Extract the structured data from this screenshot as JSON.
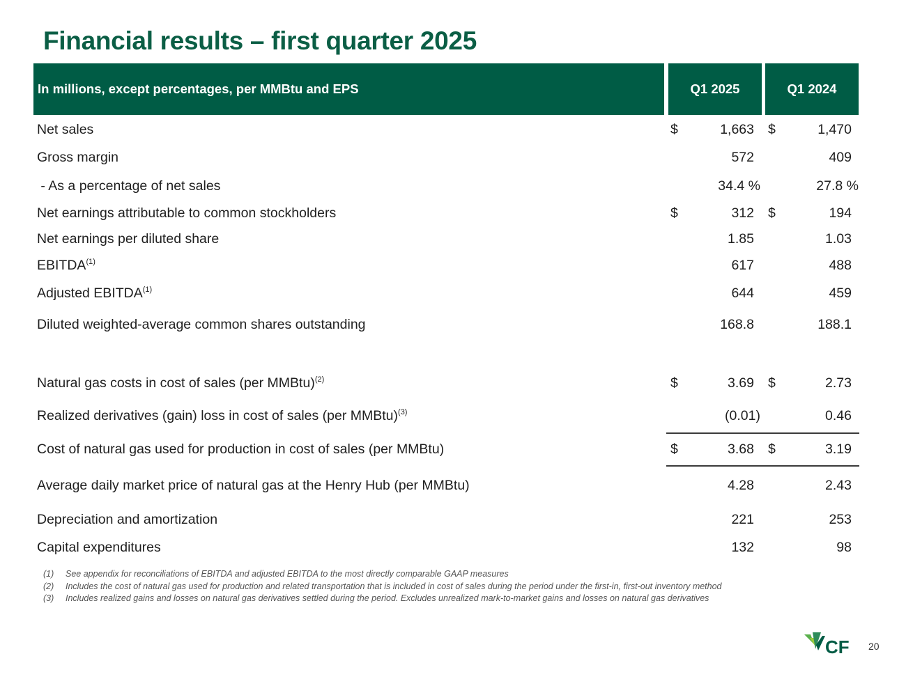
{
  "title": "Financial results – first quarter 2025",
  "header": {
    "label": "In millions, except percentages, per MMBtu and EPS",
    "col1": "Q1 2025",
    "col2": "Q1 2024"
  },
  "rows": [
    {
      "label": "Net sales",
      "sup": "",
      "d1": "$",
      "v1": "1,663",
      "d2": "$",
      "v2": "1,470"
    },
    {
      "label": "Gross margin",
      "sup": "",
      "d1": "",
      "v1": "572",
      "d2": "",
      "v2": "409"
    },
    {
      "label": " - As a percentage of net sales",
      "sup": "",
      "d1": "",
      "v1": "34.4 %",
      "d2": "",
      "v2": "27.8 %"
    },
    {
      "label": "Net earnings attributable to common stockholders",
      "sup": "",
      "d1": "$",
      "v1": "312",
      "d2": "$",
      "v2": "194"
    },
    {
      "label": "Net earnings per diluted share",
      "sup": "",
      "d1": "",
      "v1": "1.85",
      "d2": "",
      "v2": "1.03"
    },
    {
      "label": "EBITDA",
      "sup": "(1)",
      "d1": "",
      "v1": "617",
      "d2": "",
      "v2": "488"
    },
    {
      "label": "Adjusted EBITDA",
      "sup": "(1)",
      "d1": "",
      "v1": "644",
      "d2": "",
      "v2": "459"
    },
    {
      "label": "Diluted weighted-average common shares outstanding",
      "sup": "",
      "d1": "",
      "v1": "168.8",
      "d2": "",
      "v2": "188.1"
    },
    {
      "label": "Natural gas costs in cost of sales (per MMBtu)",
      "sup": "(2)",
      "d1": "$",
      "v1": "3.69",
      "d2": "$",
      "v2": "2.73"
    },
    {
      "label": "Realized derivatives (gain) loss in cost of sales (per MMBtu)",
      "sup": "(3)",
      "d1": "",
      "v1": "(0.01)",
      "d2": "",
      "v2": "0.46"
    },
    {
      "label": "Cost of natural gas used for production in cost of sales (per MMBtu)",
      "sup": "",
      "d1": "$",
      "v1": "3.68",
      "d2": "$",
      "v2": "3.19"
    },
    {
      "label": "Average daily market price of natural gas at the Henry Hub (per MMBtu)",
      "sup": "",
      "d1": "",
      "v1": "4.28",
      "d2": "",
      "v2": "2.43"
    },
    {
      "label": "Depreciation and amortization",
      "sup": "",
      "d1": "",
      "v1": "221",
      "d2": "",
      "v2": "253"
    },
    {
      "label": "Capital expenditures",
      "sup": "",
      "d1": "",
      "v1": "132",
      "d2": "",
      "v2": "98"
    }
  ],
  "footnotes": [
    {
      "num": "(1)",
      "text": "See appendix for reconciliations of EBITDA and adjusted EBITDA to the most directly comparable GAAP measures"
    },
    {
      "num": "(2)",
      "text": "Includes the cost of natural gas used for production and related transportation that is included in cost of sales during the period under the first-in, first-out inventory method"
    },
    {
      "num": "(3)",
      "text": "Includes realized gains and losses on natural gas derivatives settled during the period. Excludes unrealized mark-to-market gains and losses on natural gas derivatives"
    }
  ],
  "logo": {
    "text": "CF",
    "icon": "cf-industries-logo-icon",
    "color": "#005c45",
    "accent": "#5bb04c"
  },
  "page_number": "20"
}
